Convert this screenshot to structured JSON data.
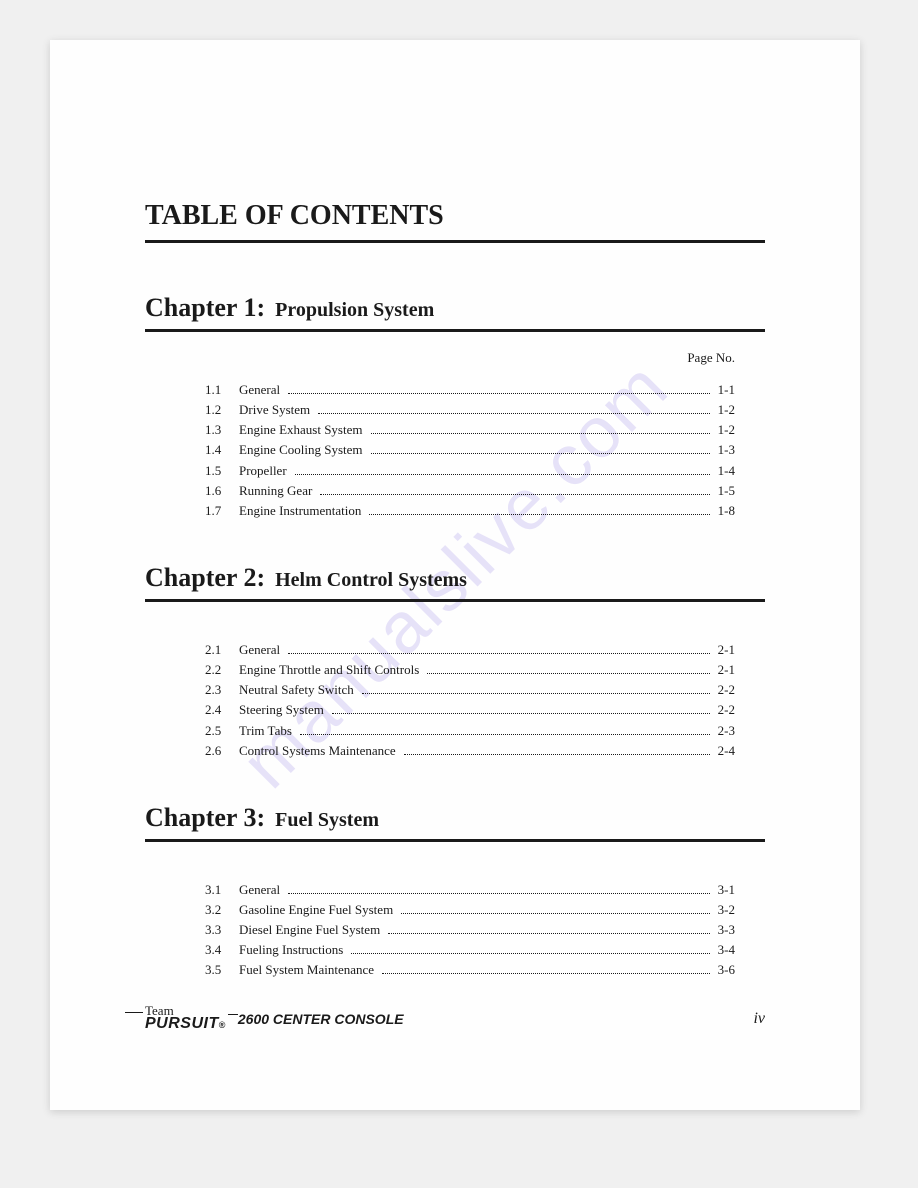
{
  "watermark": "manualslive.com",
  "main_title": "TABLE OF CONTENTS",
  "page_no_label": "Page No.",
  "chapters": [
    {
      "script": "Chapter 1:",
      "title": "Propulsion System",
      "show_page_no_label": true,
      "entries": [
        {
          "num": "1.1",
          "label": "General",
          "page": "1-1"
        },
        {
          "num": "1.2",
          "label": "Drive System",
          "page": "1-2"
        },
        {
          "num": "1.3",
          "label": "Engine Exhaust System",
          "page": "1-2"
        },
        {
          "num": "1.4",
          "label": "Engine Cooling System",
          "page": "1-3"
        },
        {
          "num": "1.5",
          "label": "Propeller",
          "page": "1-4"
        },
        {
          "num": "1.6",
          "label": "Running Gear",
          "page": "1-5"
        },
        {
          "num": "1.7",
          "label": "Engine Instrumentation",
          "page": "1-8"
        }
      ]
    },
    {
      "script": "Chapter 2:",
      "title": "Helm Control Systems",
      "show_page_no_label": false,
      "entries": [
        {
          "num": "2.1",
          "label": "General",
          "page": "2-1"
        },
        {
          "num": "2.2",
          "label": "Engine Throttle and Shift Controls",
          "page": "2-1"
        },
        {
          "num": "2.3",
          "label": "Neutral Safety Switch",
          "page": "2-2"
        },
        {
          "num": "2.4",
          "label": "Steering System",
          "page": "2-2"
        },
        {
          "num": "2.5",
          "label": "Trim Tabs",
          "page": "2-3"
        },
        {
          "num": "2.6",
          "label": "Control Systems Maintenance",
          "page": "2-4"
        }
      ]
    },
    {
      "script": "Chapter 3:",
      "title": "Fuel System",
      "show_page_no_label": false,
      "entries": [
        {
          "num": "3.1",
          "label": "General",
          "page": "3-1"
        },
        {
          "num": "3.2",
          "label": "Gasoline Engine Fuel System",
          "page": "3-2"
        },
        {
          "num": "3.3",
          "label": "Diesel Engine Fuel System",
          "page": "3-3"
        },
        {
          "num": "3.4",
          "label": "Fueling Instructions",
          "page": "3-4"
        },
        {
          "num": "3.5",
          "label": "Fuel System Maintenance",
          "page": "3-6"
        }
      ]
    }
  ],
  "footer": {
    "logo_team": "Team",
    "logo_brand": "PURSUIT",
    "logo_reg": "®",
    "model": "2600 CENTER CONSOLE",
    "pagenum": "iv"
  },
  "colors": {
    "text": "#1a1a1a",
    "page_bg": "#fefefe",
    "body_bg": "#f0f0f0",
    "watermark": "rgba(120,100,220,0.18)"
  }
}
